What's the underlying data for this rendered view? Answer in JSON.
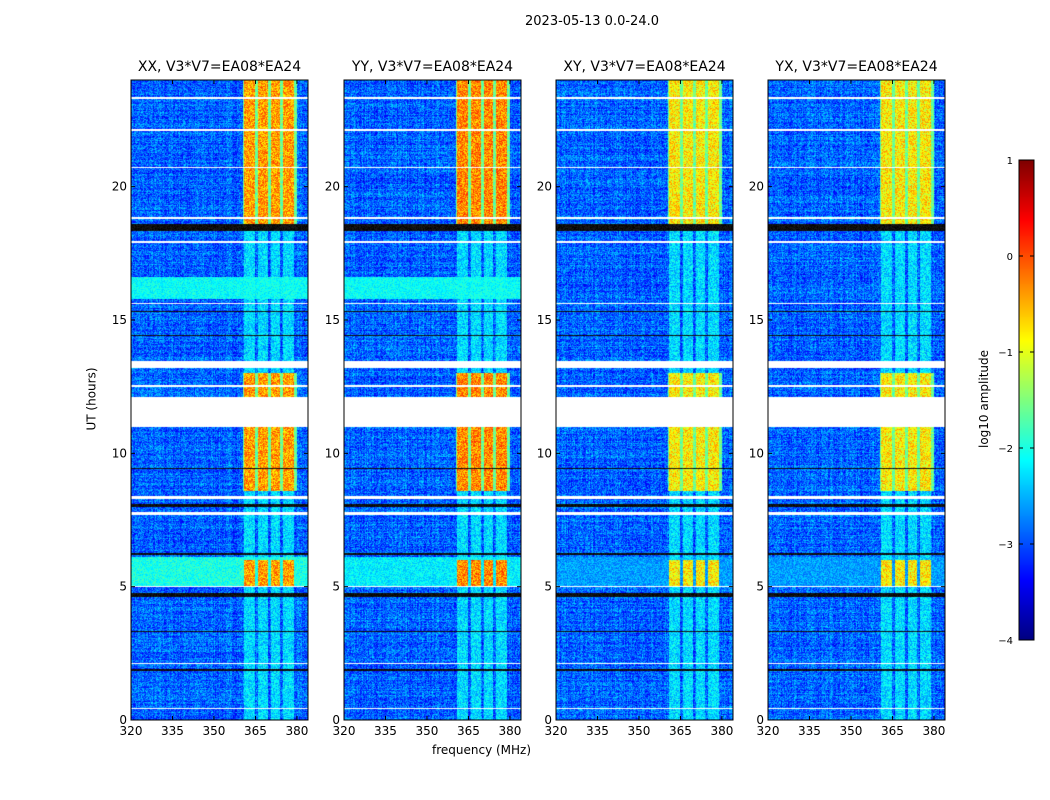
{
  "chart_data": {
    "type": "heatmap",
    "title": "2023-05-13 0.0-24.0",
    "xlabel": "frequency (MHz)",
    "ylabel": "UT (hours)",
    "xlim": [
      320,
      384
    ],
    "ylim": [
      0,
      24
    ],
    "xticks": [
      "320",
      "335",
      "350",
      "365",
      "380"
    ],
    "yticks": [
      "0",
      "5",
      "10",
      "15",
      "20"
    ],
    "panels": [
      {
        "title": "XX, V3*V7=EA08*EA24",
        "rfi_level": -0.4,
        "band_5h": -2.0
      },
      {
        "title": "YY, V3*V7=EA08*EA24",
        "rfi_level": -0.3,
        "band_5h": -2.2
      },
      {
        "title": "XY, V3*V7=EA08*EA24",
        "rfi_level": -0.8,
        "band_5h": -2.6
      },
      {
        "title": "YX, V3*V7=EA08*EA24",
        "rfi_level": -0.8,
        "band_5h": -2.6
      }
    ],
    "rfi_channels_mhz": [
      [
        361,
        365
      ],
      [
        366,
        369.5
      ],
      [
        370.5,
        374
      ],
      [
        375,
        379
      ]
    ],
    "strong_rfi_hours": [
      [
        18.6,
        24
      ],
      [
        8.6,
        11
      ],
      [
        12.1,
        13
      ]
    ],
    "flagged_hours": [
      [
        11.0,
        12.1
      ],
      [
        13.2,
        13.45
      ],
      [
        12.5,
        12.55
      ],
      [
        8.3,
        8.4
      ],
      [
        7.7,
        7.8
      ],
      [
        18.8,
        18.85
      ],
      [
        20.7,
        20.75
      ],
      [
        22.1,
        22.15
      ],
      [
        23.3,
        23.35
      ],
      [
        2.1,
        2.15
      ],
      [
        0.4,
        0.45
      ],
      [
        5.0,
        5.04
      ],
      [
        15.6,
        15.65
      ],
      [
        17.9,
        17.95
      ]
    ],
    "dead_hours": [
      [
        18.35,
        18.6
      ],
      [
        4.6,
        4.75
      ],
      [
        15.3,
        15.35
      ],
      [
        14.4,
        14.45
      ],
      [
        8.0,
        8.1
      ],
      [
        9.4,
        9.45
      ],
      [
        3.3,
        3.35
      ],
      [
        1.85,
        1.9
      ],
      [
        6.2,
        6.25
      ]
    ],
    "colorbar": {
      "label": "log10 amplitude",
      "ticks": [
        "1",
        "0",
        "−1",
        "−2",
        "−3",
        "−4"
      ],
      "range": [
        -4,
        1
      ],
      "colormap": "jet"
    }
  }
}
